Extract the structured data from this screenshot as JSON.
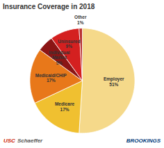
{
  "chart_data": {
    "type": "pie",
    "title": "Insurance Coverage in 2018",
    "categories": [
      "Employer",
      "Medicare",
      "Medicaid/CHIP",
      "Individual\nMarket",
      "Uninsured",
      "Other"
    ],
    "values": [
      51,
      17,
      17,
      5,
      9,
      1
    ],
    "value_labels": [
      "51%",
      "17%",
      "17%",
      "5%",
      "9%",
      "1%"
    ],
    "data_labels": true,
    "colors": [
      "#F5D98A",
      "#F0C030",
      "#E8781A",
      "#8B1515",
      "#D42020",
      "#B83030"
    ],
    "annotations": [
      {
        "text": "USC",
        "color": "#CC2200"
      },
      {
        "text": "Schaeffer",
        "color": "#555555"
      },
      {
        "text": "BROOKINGS",
        "color": "#003A7A"
      }
    ]
  }
}
